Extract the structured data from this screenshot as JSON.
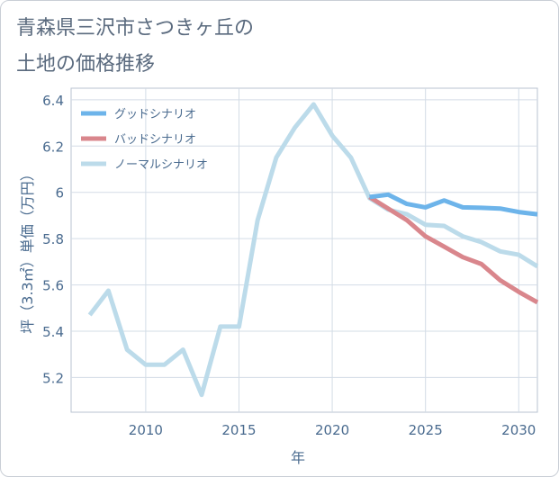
{
  "title_lines": [
    "青森県三沢市さつきヶ丘の",
    "土地の価格推移"
  ],
  "chart_data": {
    "type": "line",
    "title": "青森県三沢市さつきヶ丘の土地の価格推移",
    "xlabel": "年",
    "ylabel": "坪（3.3㎡）単価（万円）",
    "xlim": [
      2006,
      2031
    ],
    "ylim": [
      5.05,
      6.45
    ],
    "x_ticks": [
      2010,
      2015,
      2020,
      2025,
      2030
    ],
    "y_ticks": [
      5.2,
      5.4,
      5.6,
      5.8,
      6,
      6.2,
      6.4
    ],
    "y_tick_labels": [
      "5.2",
      "5.4",
      "5.6",
      "5.8",
      "6",
      "6.2",
      "6.4"
    ],
    "grid": true,
    "legend_position": "top-left",
    "series": [
      {
        "name": "グッドシナリオ",
        "color": "#6db4ea",
        "x": [
          2022,
          2023,
          2024,
          2025,
          2026,
          2027,
          2028,
          2029,
          2030,
          2031
        ],
        "y": [
          5.98,
          5.99,
          5.95,
          5.935,
          5.965,
          5.935,
          5.933,
          5.93,
          5.915,
          5.905
        ]
      },
      {
        "name": "バッドシナリオ",
        "color": "#d9868c",
        "x": [
          2022,
          2023,
          2024,
          2025,
          2026,
          2027,
          2028,
          2029,
          2030,
          2031
        ],
        "y": [
          5.98,
          5.93,
          5.88,
          5.81,
          5.765,
          5.72,
          5.69,
          5.62,
          5.57,
          5.525
        ]
      },
      {
        "name": "ノーマルシナリオ",
        "color": "#bcdbea",
        "x": [
          2007,
          2008,
          2009,
          2010,
          2011,
          2012,
          2013,
          2014,
          2015,
          2016,
          2017,
          2018,
          2019,
          2020,
          2021,
          2022,
          2023,
          2024,
          2025,
          2026,
          2027,
          2028,
          2029,
          2030,
          2031
        ],
        "y": [
          5.47,
          5.575,
          5.32,
          5.255,
          5.255,
          5.32,
          5.125,
          5.42,
          5.42,
          5.88,
          6.15,
          6.28,
          6.38,
          6.245,
          6.15,
          5.975,
          5.925,
          5.905,
          5.86,
          5.855,
          5.81,
          5.785,
          5.745,
          5.73,
          5.68
        ]
      }
    ]
  }
}
